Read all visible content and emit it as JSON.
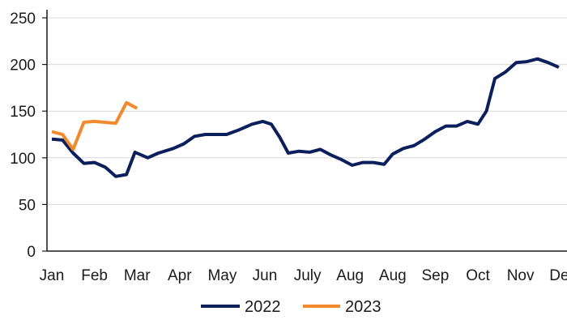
{
  "chart_data": {
    "type": "line",
    "x": [
      "Jan",
      "Feb",
      "Mar",
      "Apr",
      "May",
      "Jun",
      "July",
      "Aug",
      "Aug",
      "Sep",
      "Oct",
      "Nov",
      "Dec"
    ],
    "ylim": [
      0,
      250
    ],
    "yticks": [
      0,
      50,
      100,
      150,
      200,
      250
    ],
    "grid": true,
    "legend_position": "bottom",
    "series": [
      {
        "name": "2022",
        "color": "#0b1f5c",
        "points": [
          [
            0.0,
            120
          ],
          [
            0.25,
            119
          ],
          [
            0.5,
            105
          ],
          [
            0.75,
            94
          ],
          [
            1.0,
            95
          ],
          [
            1.25,
            90
          ],
          [
            1.5,
            80
          ],
          [
            1.75,
            82
          ],
          [
            1.95,
            106
          ],
          [
            2.25,
            100
          ],
          [
            2.5,
            105
          ],
          [
            2.85,
            110
          ],
          [
            3.1,
            115
          ],
          [
            3.35,
            123
          ],
          [
            3.6,
            125
          ],
          [
            3.85,
            125
          ],
          [
            4.1,
            125
          ],
          [
            4.4,
            130
          ],
          [
            4.7,
            136
          ],
          [
            4.95,
            139
          ],
          [
            5.15,
            136
          ],
          [
            5.35,
            122
          ],
          [
            5.55,
            105
          ],
          [
            5.8,
            107
          ],
          [
            6.05,
            106
          ],
          [
            6.3,
            109
          ],
          [
            6.55,
            103
          ],
          [
            6.8,
            98
          ],
          [
            7.05,
            92
          ],
          [
            7.3,
            95
          ],
          [
            7.55,
            95
          ],
          [
            7.8,
            93
          ],
          [
            8.0,
            104
          ],
          [
            8.25,
            110
          ],
          [
            8.5,
            113
          ],
          [
            8.75,
            120
          ],
          [
            9.0,
            128
          ],
          [
            9.25,
            134
          ],
          [
            9.5,
            134
          ],
          [
            9.75,
            139
          ],
          [
            10.0,
            136
          ],
          [
            10.2,
            150
          ],
          [
            10.4,
            185
          ],
          [
            10.65,
            192
          ],
          [
            10.9,
            202
          ],
          [
            11.15,
            203
          ],
          [
            11.4,
            206
          ],
          [
            11.65,
            202
          ],
          [
            11.9,
            197
          ]
        ]
      },
      {
        "name": "2023",
        "color": "#f08a2c",
        "points": [
          [
            0.0,
            128
          ],
          [
            0.25,
            125
          ],
          [
            0.5,
            109
          ],
          [
            0.75,
            138
          ],
          [
            1.0,
            139
          ],
          [
            1.25,
            138
          ],
          [
            1.5,
            137
          ],
          [
            1.75,
            159
          ],
          [
            2.0,
            153
          ]
        ]
      }
    ]
  }
}
